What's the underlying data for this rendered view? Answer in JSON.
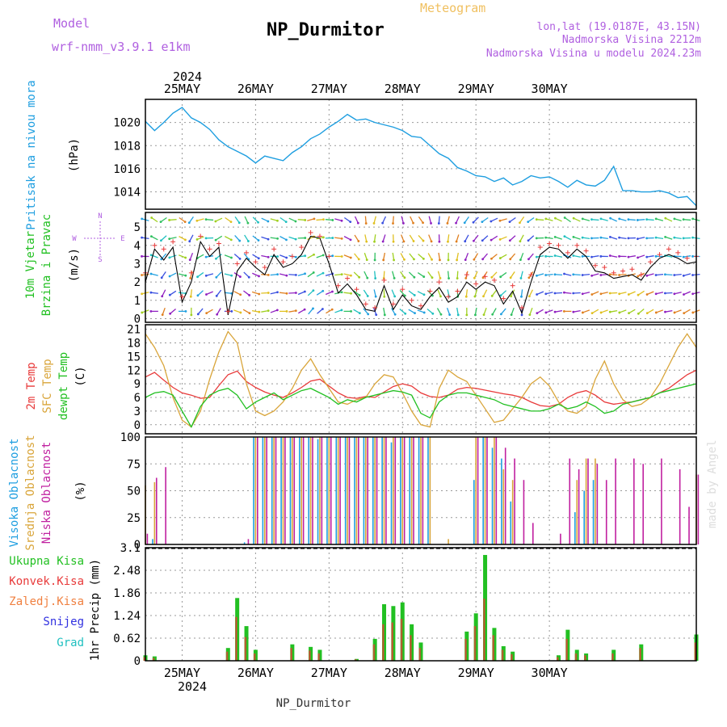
{
  "header": {
    "model_label": "Model",
    "model_name": "wrf-nmm_v3.9.1 e1km",
    "title": "NP_Durmitor",
    "meteogram_label": "Meteogram",
    "location": "lon,lat (19.0187E, 43.15N)",
    "altitude": "Nadmorska Visina 2212m",
    "model_altitude": "Nadmorska Visina u modelu 2024.23m",
    "bottom_station": "NP_Durmitor",
    "watermark": "made by Angel"
  },
  "time_axis": {
    "year_label": "2024",
    "days": [
      "25MAY",
      "26MAY",
      "27MAY",
      "28MAY",
      "29MAY",
      "30MAY"
    ],
    "start_hour": -12,
    "end_hour": 168
  },
  "colors": {
    "pressure": "#1e9ee0",
    "wind_label": "#22c022",
    "temp2m": "#e83a3a",
    "sfc": "#d9a53a",
    "dewpt": "#22c022",
    "high_cloud": "#1e9ee0",
    "mid_cloud": "#d9a53a",
    "low_cloud": "#c020a0",
    "precip_total": "#22c022",
    "precip_conv": "#e83a3a",
    "precip_strat": "#f08040",
    "snow": "#3030e0",
    "graupel": "#20c0c0",
    "purple_text": "#b060e0",
    "orange_text": "#f0c060"
  },
  "chart_data": [
    {
      "id": "pressure",
      "type": "line",
      "ylabel_main": "Pritisak na nivou mora",
      "ylabel_unit": "(hPa)",
      "ylim": [
        1012.5,
        1022.0
      ],
      "yticks": [
        1014,
        1016,
        1018,
        1020
      ],
      "x": [
        -12,
        -9,
        -6,
        -3,
        0,
        3,
        6,
        9,
        12,
        15,
        18,
        21,
        24,
        27,
        30,
        33,
        36,
        39,
        42,
        45,
        48,
        51,
        54,
        57,
        60,
        63,
        66,
        69,
        72,
        75,
        78,
        81,
        84,
        87,
        90,
        93,
        96,
        99,
        102,
        105,
        108,
        111,
        114,
        117,
        120,
        123,
        126,
        129,
        132,
        135,
        138,
        141,
        144,
        147,
        150,
        153,
        156,
        159,
        162,
        165,
        168
      ],
      "values": [
        1020.1,
        1019.3,
        1020.0,
        1020.8,
        1021.3,
        1020.4,
        1020.0,
        1019.4,
        1018.5,
        1017.9,
        1017.5,
        1017.1,
        1016.5,
        1017.1,
        1016.9,
        1016.7,
        1017.4,
        1017.9,
        1018.6,
        1019.0,
        1019.6,
        1020.1,
        1020.7,
        1020.2,
        1020.3,
        1020.0,
        1019.8,
        1019.6,
        1019.3,
        1018.8,
        1018.7,
        1018.0,
        1017.3,
        1016.9,
        1016.1,
        1015.8,
        1015.4,
        1015.3,
        1014.9,
        1015.2,
        1014.6,
        1014.9,
        1015.4,
        1015.2,
        1015.3,
        1014.9,
        1014.4,
        1015.0,
        1014.6,
        1014.5,
        1015.0,
        1016.2,
        1014.1,
        1014.1,
        1014.0,
        1014.0,
        1014.1,
        1013.9,
        1013.5,
        1013.6,
        1012.8
      ]
    },
    {
      "id": "wind",
      "type": "line",
      "ylabel_main": "10m Vjetar",
      "ylabel_sub": "Brzina i Pravac",
      "ylabel_unit": "(m/s)",
      "compass": {
        "n": "N",
        "s": "S",
        "e": "E",
        "w": "W"
      },
      "ylim": [
        -0.2,
        5.8
      ],
      "yticks": [
        0,
        1,
        2,
        3,
        4,
        5
      ],
      "x": [
        -12,
        -9,
        -6,
        -3,
        0,
        3,
        6,
        9,
        12,
        15,
        18,
        21,
        24,
        27,
        30,
        33,
        36,
        39,
        42,
        45,
        48,
        51,
        54,
        57,
        60,
        63,
        66,
        69,
        72,
        75,
        78,
        81,
        84,
        87,
        90,
        93,
        96,
        99,
        102,
        105,
        108,
        111,
        114,
        117,
        120,
        123,
        126,
        129,
        132,
        135,
        138,
        141,
        144,
        147,
        150,
        153,
        156,
        159,
        162,
        165,
        168
      ],
      "speed": [
        2.0,
        3.8,
        3.2,
        3.9,
        0.9,
        2.0,
        4.2,
        3.4,
        3.9,
        0.2,
        2.6,
        3.3,
        2.8,
        2.4,
        3.5,
        2.8,
        3.0,
        3.5,
        4.5,
        4.4,
        3.0,
        1.4,
        1.9,
        1.3,
        0.5,
        0.4,
        1.8,
        0.5,
        1.3,
        0.7,
        0.5,
        1.2,
        1.7,
        0.9,
        1.2,
        2.0,
        1.6,
        2.0,
        1.8,
        0.8,
        1.5,
        0.3,
        2.0,
        3.5,
        3.9,
        3.8,
        3.3,
        3.8,
        3.4,
        2.6,
        2.5,
        2.2,
        2.3,
        2.4,
        2.1,
        2.8,
        3.3,
        3.5,
        3.3,
        3.0,
        3.1
      ],
      "direction_deg": [
        250,
        270,
        200,
        230,
        90,
        180,
        220,
        240,
        210,
        90,
        110,
        120,
        100,
        80,
        70,
        90,
        80,
        60,
        40,
        50,
        60,
        70,
        90,
        120,
        140,
        160,
        170,
        150,
        130,
        120,
        110,
        130,
        150,
        160,
        170,
        180,
        190,
        200,
        210,
        220,
        200,
        180,
        200,
        240,
        250,
        260,
        270,
        260,
        250,
        240,
        250,
        260,
        250,
        240,
        230,
        240,
        250,
        260,
        250,
        240,
        250
      ],
      "gust": [
        2.5,
        4.0,
        3.8,
        4.2,
        1.2,
        2.5,
        4.5,
        3.8,
        4.1,
        0.4,
        3.0,
        3.6,
        3.1,
        2.8,
        3.8,
        3.1,
        3.4,
        3.9,
        4.7,
        4.5,
        3.4,
        1.8,
        2.2,
        1.6,
        0.8,
        0.6,
        2.1,
        0.8,
        1.6,
        1.0,
        0.7,
        1.5,
        2.0,
        1.2,
        1.5,
        2.4,
        1.9,
        2.3,
        2.1,
        1.1,
        1.8,
        0.6,
        2.4,
        3.9,
        4.1,
        4.0,
        3.6,
        4.0,
        3.7,
        2.9,
        2.8,
        2.5,
        2.6,
        2.7,
        2.4,
        3.1,
        3.5,
        3.8,
        3.6,
        3.3,
        3.4
      ]
    },
    {
      "id": "temperature",
      "type": "line",
      "ylabel_lines": [
        "2m Temp",
        "SFC Temp",
        "dewpt Temp"
      ],
      "ylabel_unit": "(C)",
      "ylim": [
        -2.0,
        22.0
      ],
      "yticks": [
        0,
        3,
        6,
        9,
        12,
        15,
        18,
        21
      ],
      "x": [
        -12,
        -9,
        -6,
        -3,
        0,
        3,
        6,
        9,
        12,
        15,
        18,
        21,
        24,
        27,
        30,
        33,
        36,
        39,
        42,
        45,
        48,
        51,
        54,
        57,
        60,
        63,
        66,
        69,
        72,
        75,
        78,
        81,
        84,
        87,
        90,
        93,
        96,
        99,
        102,
        105,
        108,
        111,
        114,
        117,
        120,
        123,
        126,
        129,
        132,
        135,
        138,
        141,
        144,
        147,
        150,
        153,
        156,
        159,
        162,
        165,
        168
      ],
      "series": [
        {
          "name": "2m Temp",
          "color": "#e83a3a",
          "values": [
            10.5,
            11.5,
            9.8,
            8.2,
            7.0,
            6.5,
            5.8,
            6.0,
            8.6,
            11.0,
            11.8,
            9.5,
            8.2,
            7.2,
            6.5,
            6.0,
            7.0,
            8.2,
            9.6,
            10.0,
            8.5,
            7.0,
            6.0,
            5.8,
            6.2,
            6.0,
            7.2,
            8.4,
            9.0,
            8.5,
            7.0,
            6.2,
            6.0,
            6.5,
            7.8,
            8.2,
            8.0,
            7.6,
            7.2,
            6.8,
            6.5,
            6.0,
            5.0,
            4.2,
            4.0,
            4.5,
            6.0,
            7.0,
            7.5,
            6.5,
            5.0,
            4.5,
            4.8,
            5.0,
            5.5,
            6.0,
            7.0,
            8.0,
            9.5,
            11.0,
            12.0
          ]
        },
        {
          "name": "SFC Temp",
          "color": "#d9a53a",
          "values": [
            20.0,
            17.0,
            13.0,
            6.0,
            1.0,
            -0.5,
            3.0,
            10.0,
            16.0,
            20.5,
            18.0,
            9.0,
            3.0,
            2.0,
            3.0,
            5.0,
            8.0,
            12.0,
            14.5,
            11.0,
            8.0,
            5.0,
            4.5,
            5.5,
            6.0,
            9.0,
            11.0,
            10.5,
            7.0,
            3.0,
            0.0,
            -0.5,
            8.0,
            12.0,
            10.5,
            9.5,
            6.5,
            3.5,
            0.5,
            1.0,
            3.5,
            6.0,
            9.0,
            10.5,
            8.5,
            5.0,
            3.0,
            2.5,
            4.0,
            10.0,
            14.0,
            9.0,
            5.5,
            4.0,
            4.5,
            6.0,
            9.0,
            13.0,
            17.0,
            20.0,
            17.0
          ]
        },
        {
          "name": "dewpt Temp",
          "color": "#22c022",
          "values": [
            6.0,
            7.0,
            7.3,
            6.5,
            3.0,
            -0.5,
            4.0,
            6.5,
            7.5,
            8.0,
            6.5,
            3.5,
            5.0,
            6.0,
            7.0,
            5.5,
            6.5,
            7.5,
            8.0,
            7.0,
            6.0,
            4.5,
            5.5,
            5.0,
            6.0,
            6.5,
            7.0,
            7.5,
            7.2,
            6.5,
            2.5,
            1.5,
            5.0,
            6.5,
            7.0,
            7.0,
            6.5,
            6.0,
            5.5,
            4.5,
            4.0,
            3.5,
            3.0,
            3.0,
            3.5,
            4.5,
            3.5,
            4.0,
            5.0,
            4.0,
            2.5,
            3.0,
            4.5,
            5.0,
            5.5,
            6.0,
            7.0,
            7.5,
            8.0,
            8.5,
            9.0
          ]
        }
      ]
    },
    {
      "id": "cloud",
      "type": "bar",
      "ylabel_lines": [
        "Visoka Oblacnost",
        "Srednja Oblacnost",
        "Niska Oblacnost"
      ],
      "ylabel_unit": "(%)",
      "ylim": [
        0,
        100
      ],
      "yticks": [
        0,
        25,
        50,
        75,
        100
      ],
      "x": [
        -12,
        -9,
        -6,
        -3,
        0,
        3,
        6,
        9,
        12,
        15,
        18,
        21,
        24,
        27,
        30,
        33,
        36,
        39,
        42,
        45,
        48,
        51,
        54,
        57,
        60,
        63,
        66,
        69,
        72,
        75,
        78,
        81,
        84,
        87,
        90,
        93,
        96,
        99,
        102,
        105,
        108,
        111,
        114,
        117,
        120,
        123,
        126,
        129,
        132,
        135,
        138,
        141,
        144,
        147,
        150,
        153,
        156,
        159,
        162,
        165,
        168
      ],
      "series": [
        {
          "name": "Visoka Oblacnost",
          "color": "#1e9ee0",
          "values": [
            0,
            5,
            0,
            0,
            0,
            0,
            0,
            0,
            0,
            0,
            0,
            2,
            100,
            100,
            100,
            100,
            100,
            100,
            100,
            98,
            100,
            100,
            100,
            100,
            100,
            100,
            100,
            95,
            100,
            100,
            100,
            100,
            0,
            0,
            0,
            0,
            60,
            100,
            90,
            80,
            40,
            0,
            0,
            0,
            0,
            0,
            0,
            30,
            50,
            60,
            0,
            0,
            0,
            0,
            0,
            0,
            0,
            0,
            0,
            0,
            0
          ]
        },
        {
          "name": "Srednja Oblacnost",
          "color": "#d9a53a",
          "values": [
            55,
            58,
            0,
            0,
            0,
            0,
            0,
            0,
            0,
            0,
            0,
            0,
            100,
            100,
            100,
            100,
            100,
            100,
            100,
            100,
            100,
            100,
            100,
            100,
            100,
            100,
            100,
            100,
            100,
            100,
            100,
            100,
            0,
            5,
            0,
            0,
            100,
            100,
            100,
            70,
            60,
            0,
            0,
            0,
            0,
            0,
            0,
            60,
            80,
            80,
            0,
            0,
            0,
            0,
            0,
            0,
            0,
            0,
            0,
            0,
            65
          ]
        },
        {
          "name": "Niska Oblacnost",
          "color": "#c020a0",
          "values": [
            10,
            62,
            72,
            0,
            0,
            0,
            0,
            0,
            0,
            0,
            0,
            5,
            100,
            100,
            100,
            100,
            100,
            100,
            100,
            100,
            100,
            100,
            100,
            100,
            100,
            100,
            100,
            100,
            100,
            100,
            100,
            0,
            0,
            0,
            0,
            0,
            100,
            100,
            100,
            90,
            80,
            60,
            20,
            0,
            0,
            10,
            80,
            70,
            80,
            75,
            60,
            80,
            0,
            80,
            75,
            0,
            80,
            0,
            70,
            35,
            65
          ]
        }
      ]
    },
    {
      "id": "precip",
      "type": "bar",
      "legend": [
        "Ukupna Kisa",
        "Konvek.Kisa",
        "Zaledj.Kisa",
        "Snijeg",
        "Grad"
      ],
      "ylabel_main": "1hr Precip",
      "ylabel_unit": "(mm)",
      "ylim": [
        0,
        3.1
      ],
      "yticks": [
        0,
        0.62,
        1.24,
        1.86,
        2.48,
        3.1
      ],
      "ytick_labels": [
        "0",
        "0.62",
        "1.24",
        "1.86",
        "2.48",
        "3.1"
      ],
      "x": [
        -12,
        -9,
        -6,
        -3,
        0,
        3,
        6,
        9,
        12,
        15,
        18,
        21,
        24,
        27,
        30,
        33,
        36,
        39,
        42,
        45,
        48,
        51,
        54,
        57,
        60,
        63,
        66,
        69,
        72,
        75,
        78,
        81,
        84,
        87,
        90,
        93,
        96,
        99,
        102,
        105,
        108,
        111,
        114,
        117,
        120,
        123,
        126,
        129,
        132,
        135,
        138,
        141,
        144,
        147,
        150,
        153,
        156,
        159,
        162,
        165,
        168
      ],
      "series": [
        {
          "name": "Ukupna Kisa",
          "color": "#22c022",
          "values": [
            0.15,
            0.12,
            0,
            0,
            0,
            0,
            0,
            0,
            0,
            0.35,
            1.72,
            0.95,
            0.3,
            0,
            0,
            0,
            0.45,
            0,
            0.38,
            0.3,
            0,
            0,
            0,
            0.05,
            0,
            0.6,
            1.55,
            1.5,
            1.6,
            1.0,
            0.5,
            0,
            0,
            0,
            0,
            0.8,
            1.3,
            2.9,
            0.9,
            0.4,
            0.25,
            0,
            0,
            0,
            0,
            0.15,
            0.85,
            0.3,
            0.2,
            0,
            0,
            0.3,
            0,
            0,
            0.45,
            0,
            0,
            0,
            0,
            0,
            0.72
          ]
        },
        {
          "name": "Konvek.Kisa",
          "color": "#e83a3a",
          "values": [
            0.1,
            0.08,
            0,
            0,
            0,
            0,
            0,
            0,
            0,
            0.25,
            1.2,
            0.65,
            0.2,
            0,
            0,
            0,
            0.35,
            0,
            0.28,
            0.2,
            0,
            0,
            0,
            0.04,
            0,
            0.45,
            1.0,
            1.05,
            1.15,
            0.7,
            0.35,
            0,
            0,
            0,
            0,
            0.6,
            0.95,
            1.7,
            0.7,
            0.3,
            0.18,
            0,
            0,
            0,
            0,
            0.1,
            0.6,
            0.2,
            0.15,
            0,
            0,
            0.2,
            0,
            0,
            0.35,
            0,
            0,
            0,
            0,
            0,
            0.5
          ]
        }
      ]
    }
  ]
}
